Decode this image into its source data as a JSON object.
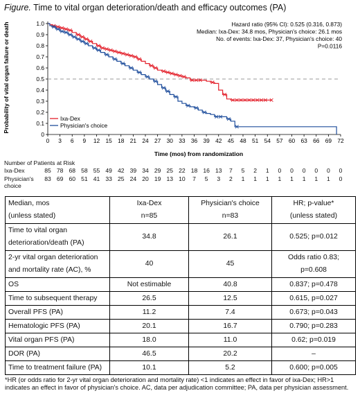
{
  "figure": {
    "title_lead": "Figure.",
    "title_rest": " Time to vital organ deterioration/death and efficacy outcomes (PA)"
  },
  "chart_data": {
    "type": "line",
    "title": "Time to vital organ deterioration/death and efficacy outcomes (PA)",
    "xlabel": "Time (mos) from randomization",
    "ylabel": "Probability of vital organ failure or death",
    "xlim": [
      0,
      72
    ],
    "ylim": [
      0,
      1.0
    ],
    "xticks": [
      0,
      3,
      6,
      9,
      12,
      15,
      18,
      21,
      24,
      27,
      30,
      33,
      36,
      39,
      42,
      45,
      48,
      51,
      54,
      57,
      60,
      63,
      66,
      69,
      72
    ],
    "yticks": [
      0,
      0.1,
      0.2,
      0.3,
      0.4,
      0.5,
      0.6,
      0.7,
      0.8,
      0.9,
      1.0
    ],
    "ytick_labels": [
      "0",
      "0.1",
      "0.2",
      "0.3",
      "0.4",
      "0.5",
      "0.6",
      "0.7",
      "0.8",
      "0.9",
      "1.0"
    ],
    "reference_line": 0.5,
    "annotation": [
      "Hazard ratio (95% CI): 0.525 (0.316, 0.873)",
      "Median: Ixa-Dex: 34.8 mos, Physician's choice: 26.1 mos",
      "No. of events: Ixa-Dex: 37, Physician's choice: 40",
      "P=0.0116"
    ],
    "legend_position": "lower-left",
    "series": [
      {
        "name": "Ixa-Dex",
        "color": "#e3202b",
        "step": [
          [
            0,
            1.0
          ],
          [
            0.5,
            0.99
          ],
          [
            1,
            0.98
          ],
          [
            2,
            0.97
          ],
          [
            3,
            0.96
          ],
          [
            4,
            0.95
          ],
          [
            5,
            0.94
          ],
          [
            6,
            0.92
          ],
          [
            7,
            0.9
          ],
          [
            8,
            0.88
          ],
          [
            9,
            0.86
          ],
          [
            10,
            0.84
          ],
          [
            11,
            0.82
          ],
          [
            12,
            0.8
          ],
          [
            13,
            0.78
          ],
          [
            14,
            0.77
          ],
          [
            15,
            0.76
          ],
          [
            16,
            0.75
          ],
          [
            17,
            0.74
          ],
          [
            18,
            0.73
          ],
          [
            19,
            0.72
          ],
          [
            20,
            0.71
          ],
          [
            21,
            0.7
          ],
          [
            22,
            0.68
          ],
          [
            23,
            0.66
          ],
          [
            24,
            0.64
          ],
          [
            25,
            0.62
          ],
          [
            26,
            0.6
          ],
          [
            27,
            0.58
          ],
          [
            28,
            0.57
          ],
          [
            29,
            0.56
          ],
          [
            30,
            0.55
          ],
          [
            31,
            0.54
          ],
          [
            32,
            0.53
          ],
          [
            33,
            0.52
          ],
          [
            34,
            0.51
          ],
          [
            35,
            0.49
          ],
          [
            38,
            0.49
          ],
          [
            39,
            0.48
          ],
          [
            40,
            0.47
          ],
          [
            41,
            0.46
          ],
          [
            42,
            0.4
          ],
          [
            43,
            0.36
          ],
          [
            44,
            0.32
          ],
          [
            45,
            0.31
          ],
          [
            55,
            0.31
          ]
        ],
        "censored": [
          [
            1.5,
            0.98
          ],
          [
            2.5,
            0.97
          ],
          [
            3.5,
            0.96
          ],
          [
            4.5,
            0.95
          ],
          [
            5.5,
            0.94
          ],
          [
            7.5,
            0.9
          ],
          [
            8.5,
            0.88
          ],
          [
            9.5,
            0.86
          ],
          [
            10.5,
            0.84
          ],
          [
            12.5,
            0.8
          ],
          [
            13.5,
            0.78
          ],
          [
            14.5,
            0.77
          ],
          [
            15.5,
            0.76
          ],
          [
            16.5,
            0.75
          ],
          [
            17.5,
            0.74
          ],
          [
            18.5,
            0.73
          ],
          [
            19.5,
            0.72
          ],
          [
            20.5,
            0.71
          ],
          [
            21.5,
            0.7
          ],
          [
            22.5,
            0.68
          ],
          [
            25.5,
            0.62
          ],
          [
            26.5,
            0.6
          ],
          [
            28.5,
            0.57
          ],
          [
            29.5,
            0.56
          ],
          [
            30.5,
            0.55
          ],
          [
            31.5,
            0.54
          ],
          [
            32.5,
            0.53
          ],
          [
            33.5,
            0.52
          ],
          [
            35.5,
            0.49
          ],
          [
            36.5,
            0.49
          ],
          [
            37.5,
            0.49
          ],
          [
            40.5,
            0.47
          ],
          [
            43.5,
            0.36
          ],
          [
            45.5,
            0.31
          ],
          [
            46.5,
            0.31
          ],
          [
            47.5,
            0.31
          ],
          [
            48.5,
            0.31
          ],
          [
            49.5,
            0.31
          ],
          [
            50.5,
            0.31
          ],
          [
            51.5,
            0.31
          ],
          [
            52.5,
            0.31
          ],
          [
            53.5,
            0.31
          ],
          [
            55,
            0.31
          ]
        ]
      },
      {
        "name": "Physician's choice",
        "color": "#1f4e9c",
        "step": [
          [
            0,
            1.0
          ],
          [
            0.5,
            0.98
          ],
          [
            1,
            0.97
          ],
          [
            2,
            0.95
          ],
          [
            3,
            0.93
          ],
          [
            4,
            0.92
          ],
          [
            5,
            0.9
          ],
          [
            6,
            0.88
          ],
          [
            7,
            0.86
          ],
          [
            8,
            0.84
          ],
          [
            9,
            0.82
          ],
          [
            10,
            0.8
          ],
          [
            11,
            0.78
          ],
          [
            12,
            0.76
          ],
          [
            13,
            0.74
          ],
          [
            14,
            0.72
          ],
          [
            15,
            0.7
          ],
          [
            16,
            0.68
          ],
          [
            17,
            0.66
          ],
          [
            18,
            0.64
          ],
          [
            19,
            0.62
          ],
          [
            20,
            0.6
          ],
          [
            21,
            0.58
          ],
          [
            22,
            0.56
          ],
          [
            23,
            0.54
          ],
          [
            24,
            0.52
          ],
          [
            25,
            0.5
          ],
          [
            26,
            0.48
          ],
          [
            27,
            0.45
          ],
          [
            28,
            0.42
          ],
          [
            29,
            0.39
          ],
          [
            30,
            0.36
          ],
          [
            31,
            0.34
          ],
          [
            32,
            0.3
          ],
          [
            33,
            0.28
          ],
          [
            34,
            0.26
          ],
          [
            35,
            0.25
          ],
          [
            36,
            0.24
          ],
          [
            37,
            0.22
          ],
          [
            38,
            0.2
          ],
          [
            39,
            0.19
          ],
          [
            40,
            0.18
          ],
          [
            41,
            0.16
          ],
          [
            44,
            0.14
          ],
          [
            45,
            0.12
          ],
          [
            46,
            0.07
          ],
          [
            71,
            0.07
          ],
          [
            71,
            0
          ]
        ],
        "censored": [
          [
            1.5,
            0.97
          ],
          [
            2.5,
            0.95
          ],
          [
            3.5,
            0.93
          ],
          [
            4.5,
            0.92
          ],
          [
            5.5,
            0.9
          ],
          [
            6.5,
            0.88
          ],
          [
            7.5,
            0.86
          ],
          [
            8.5,
            0.84
          ],
          [
            9.5,
            0.82
          ],
          [
            11.5,
            0.78
          ],
          [
            12.5,
            0.76
          ],
          [
            14.5,
            0.72
          ],
          [
            16.5,
            0.68
          ],
          [
            18.5,
            0.64
          ],
          [
            20.5,
            0.6
          ],
          [
            22.5,
            0.56
          ],
          [
            24.5,
            0.52
          ],
          [
            26.5,
            0.48
          ],
          [
            28.5,
            0.42
          ],
          [
            29.5,
            0.39
          ],
          [
            31.5,
            0.34
          ],
          [
            34.5,
            0.26
          ],
          [
            36.5,
            0.24
          ],
          [
            38.5,
            0.2
          ],
          [
            41.5,
            0.16
          ],
          [
            42.5,
            0.16
          ],
          [
            44.5,
            0.14
          ],
          [
            46.5,
            0.07
          ]
        ]
      }
    ]
  },
  "risk_table": {
    "title": "Number of Patients at Risk",
    "times": [
      0,
      3,
      6,
      9,
      12,
      15,
      18,
      21,
      24,
      27,
      30,
      33,
      36,
      39,
      42,
      45,
      48,
      51,
      54,
      57,
      60,
      63,
      66,
      69,
      72
    ],
    "rows": [
      {
        "label": "Ixa-Dex",
        "values": [
          "85",
          "78",
          "68",
          "58",
          "55",
          "49",
          "42",
          "39",
          "34",
          "29",
          "25",
          "22",
          "18",
          "16",
          "13",
          "7",
          "5",
          "2",
          "1",
          "0",
          "0",
          "0",
          "0",
          "0",
          "0"
        ]
      },
      {
        "label": "Physician's choice",
        "values": [
          "83",
          "69",
          "60",
          "51",
          "41",
          "33",
          "25",
          "24",
          "20",
          "19",
          "13",
          "10",
          "7",
          "5",
          "3",
          "2",
          "1",
          "1",
          "1",
          "1",
          "1",
          "1",
          "1",
          "1",
          "0"
        ]
      }
    ]
  },
  "table": {
    "header": {
      "col1": [
        "Median, mos",
        "(unless stated)"
      ],
      "col2": [
        "Ixa-Dex",
        "n=85"
      ],
      "col3": [
        "Physician's choice",
        "n=83"
      ],
      "col4": [
        "HR; p-value*",
        "(unless stated)"
      ]
    },
    "rows": [
      {
        "label": [
          "Time to vital organ",
          "deterioration/death (PA)"
        ],
        "ixa": "34.8",
        "pc": "26.1",
        "hr": [
          "0.525; p=0.012"
        ]
      },
      {
        "label": [
          "2-yr vital organ deterioration",
          "and mortality rate (AC), %"
        ],
        "ixa": "40",
        "pc": "45",
        "hr": [
          "Odds ratio 0.83;",
          "p=0.608"
        ]
      },
      {
        "label": [
          "OS"
        ],
        "ixa": "Not estimable",
        "pc": "40.8",
        "hr": [
          "0.837; p=0.478"
        ]
      },
      {
        "label": [
          "Time to subsequent therapy"
        ],
        "ixa": "26.5",
        "pc": "12.5",
        "hr": [
          "0.615, p=0.027"
        ]
      },
      {
        "label": [
          "Overall PFS (PA)"
        ],
        "ixa": "11.2",
        "pc": "7.4",
        "hr": [
          "0.673; p=0.043"
        ]
      },
      {
        "label": [
          "Hematologic PFS (PA)"
        ],
        "ixa": "20.1",
        "pc": "16.7",
        "hr": [
          "0.790; p=0.283"
        ]
      },
      {
        "label": [
          "Vital organ PFS (PA)"
        ],
        "ixa": "18.0",
        "pc": "11.0",
        "hr": [
          "0.62; p=0.019"
        ]
      },
      {
        "label": [
          "DOR (PA)"
        ],
        "ixa": "46.5",
        "pc": "20.2",
        "hr": [
          "–"
        ]
      },
      {
        "label": [
          "Time to treatment failure (PA)"
        ],
        "ixa": "10.1",
        "pc": "5.2",
        "hr": [
          "0.600; p=0.005"
        ]
      }
    ]
  },
  "footnote": "*HR (or odds ratio for 2-yr vital organ deterioration and mortality rate) <1 indicates an effect in favor of ixa-Dex; HR>1 indicates an effect in favor of physician's choice. AC, data per adjudication committee; PA, data per physician assessment."
}
